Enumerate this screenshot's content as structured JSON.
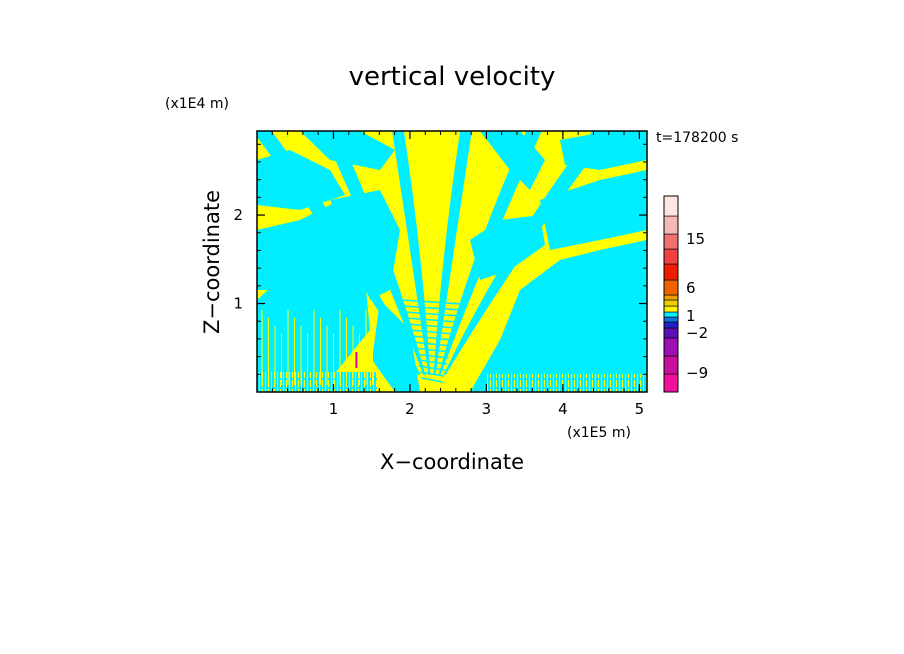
{
  "chart_data": {
    "type": "heatmap",
    "title": "vertical velocity",
    "xlabel": "X−coordinate",
    "ylabel": "Z−coordinate",
    "x_unit": "(x1E5 m)",
    "y_unit": "(x1E4 m)",
    "time_label": "t=178200 s",
    "xlim": [
      0.0,
      5.1
    ],
    "ylim": [
      0.0,
      2.95
    ],
    "x_ticks": [
      1,
      2,
      3,
      4,
      5
    ],
    "y_ticks": [
      1,
      2
    ],
    "colorbar": {
      "levels": [
        {
          "color": "#f0109c"
        },
        {
          "color": "#c8109c"
        },
        {
          "color": "#9c10b4"
        },
        {
          "color": "#5a10b4"
        },
        {
          "color": "#2020c8"
        },
        {
          "color": "#1070e0"
        },
        {
          "color": "#00f0ff"
        },
        {
          "color": "#fff200"
        },
        {
          "color": "#f0d000"
        },
        {
          "color": "#f0a000"
        },
        {
          "color": "#f06400"
        },
        {
          "color": "#f01c00"
        },
        {
          "color": "#f04040"
        },
        {
          "color": "#f07070"
        },
        {
          "color": "#f4b8b8"
        },
        {
          "color": "#fce8e0"
        }
      ],
      "tick_labels": [
        "15",
        "6",
        "1",
        "−2",
        "−9"
      ]
    },
    "field_colors": {
      "negative": "#00eeff",
      "positive": "#ffff00"
    },
    "field_note": "two-color pattern of alternating positive (yellow) and negative (cyan) bands; V-shaped wave pattern centered near x=2.2"
  }
}
